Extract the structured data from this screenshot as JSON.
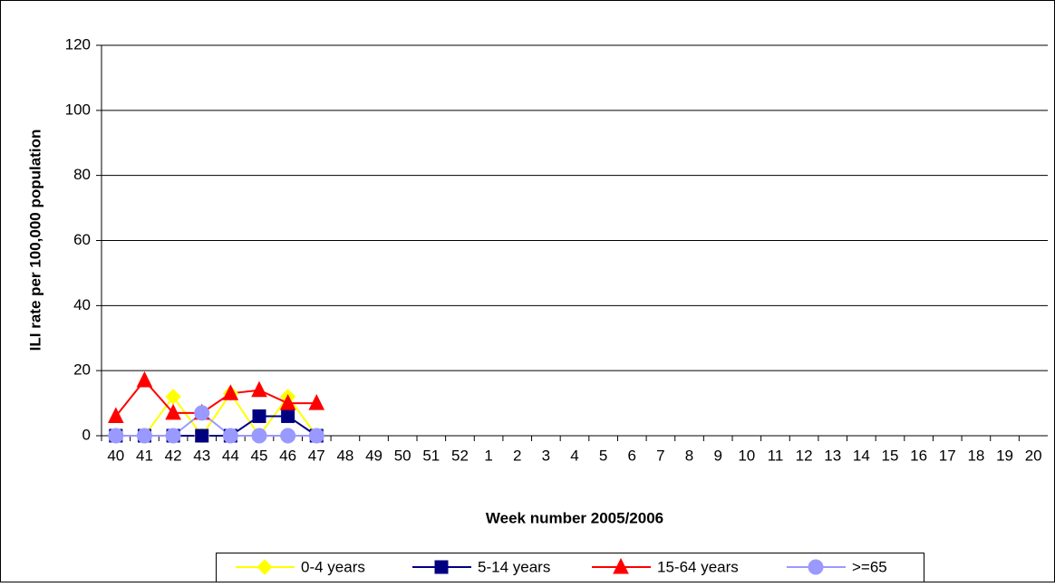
{
  "chart_data": {
    "type": "line",
    "y_label": "ILI rate per 100,000 population",
    "x_label": "Week number 2005/2006",
    "categories": [
      "40",
      "41",
      "42",
      "43",
      "44",
      "45",
      "46",
      "47",
      "48",
      "49",
      "50",
      "51",
      "52",
      "1",
      "2",
      "3",
      "4",
      "5",
      "6",
      "7",
      "8",
      "9",
      "10",
      "11",
      "12",
      "13",
      "14",
      "15",
      "16",
      "17",
      "18",
      "19",
      "20"
    ],
    "series": [
      {
        "name": "0-4 years",
        "color": "#ffff00",
        "marker": "diamond",
        "values": [
          0,
          0,
          12,
          0,
          13,
          0,
          12,
          0,
          null,
          null,
          null,
          null,
          null,
          null,
          null,
          null,
          null,
          null,
          null,
          null,
          null,
          null,
          null,
          null,
          null,
          null,
          null,
          null,
          null,
          null,
          null,
          null,
          null
        ]
      },
      {
        "name": "5-14 years",
        "color": "#000080",
        "marker": "square",
        "values": [
          0,
          0,
          0,
          0,
          0,
          6,
          6,
          0,
          null,
          null,
          null,
          null,
          null,
          null,
          null,
          null,
          null,
          null,
          null,
          null,
          null,
          null,
          null,
          null,
          null,
          null,
          null,
          null,
          null,
          null,
          null,
          null,
          null
        ]
      },
      {
        "name": "15-64 years",
        "color": "#ff0000",
        "marker": "triangle",
        "values": [
          6,
          17,
          7,
          7,
          13,
          14,
          10,
          10,
          null,
          null,
          null,
          null,
          null,
          null,
          null,
          null,
          null,
          null,
          null,
          null,
          null,
          null,
          null,
          null,
          null,
          null,
          null,
          null,
          null,
          null,
          null,
          null,
          null
        ]
      },
      {
        "name": ">=65",
        "color": "#9999ff",
        "marker": "circle",
        "values": [
          0,
          0,
          0,
          7,
          0,
          0,
          0,
          0,
          null,
          null,
          null,
          null,
          null,
          null,
          null,
          null,
          null,
          null,
          null,
          null,
          null,
          null,
          null,
          null,
          null,
          null,
          null,
          null,
          null,
          null,
          null,
          null,
          null
        ]
      }
    ],
    "ylim": [
      0,
      120
    ],
    "yticks": [
      0,
      20,
      40,
      60,
      80,
      100,
      120
    ],
    "grid": true,
    "legend": "bottom"
  }
}
